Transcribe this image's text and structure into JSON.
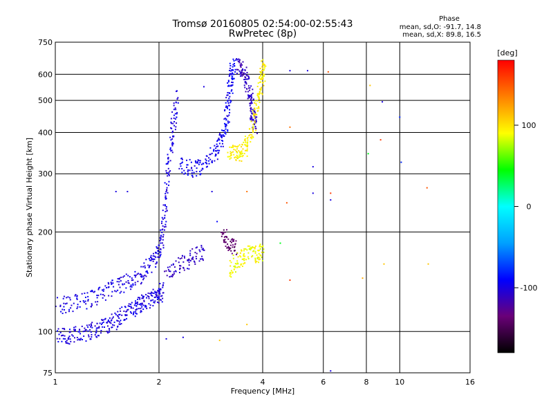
{
  "chart_data": {
    "type": "scatter",
    "title": "Tromsø 20160805 02:54:00-02:55:43",
    "subtitle": "RwPretec (8p)",
    "xlabel": "Frequency [MHz]",
    "ylabel": "Stationary phase Virtual Height [km]",
    "x_scale": "log",
    "y_scale": "log",
    "xlim": [
      1,
      16
    ],
    "ylim": [
      75,
      750
    ],
    "x_ticks": [
      1,
      2,
      4,
      6,
      8,
      10,
      16
    ],
    "y_ticks": [
      75,
      100,
      200,
      300,
      400,
      500,
      600,
      750
    ],
    "grid": true,
    "phase_info": {
      "heading": "Phase",
      "line_o": "mean, sd,O: -91.7, 14.8",
      "line_x": "mean, sd,X:  89.8, 16.5"
    },
    "colorbar": {
      "label": "[deg]",
      "range": [
        -180,
        180
      ],
      "ticks": [
        100,
        0,
        -100
      ],
      "colors": [
        "#000000",
        "#6a0078",
        "#0000ff",
        "#00a0ff",
        "#00ffff",
        "#00ff00",
        "#ffff00",
        "#ff8000",
        "#ff0000"
      ]
    },
    "traces": [
      {
        "points": [
          [
            1.01,
            97
          ],
          [
            1.1,
            97
          ],
          [
            1.2,
            99
          ],
          [
            1.3,
            101
          ],
          [
            1.4,
            104
          ],
          [
            1.5,
            108
          ],
          [
            1.6,
            114
          ],
          [
            1.7,
            119
          ],
          [
            1.8,
            122
          ],
          [
            1.9,
            126
          ],
          [
            2.0,
            130
          ],
          [
            2.05,
            133
          ]
        ],
        "phase": -100
      },
      {
        "points": [
          [
            1.02,
            120
          ],
          [
            1.15,
            122
          ],
          [
            1.3,
            127
          ],
          [
            1.45,
            134
          ],
          [
            1.6,
            140
          ],
          [
            1.75,
            148
          ],
          [
            1.9,
            160
          ],
          [
            2.0,
            172
          ],
          [
            2.05,
            200
          ],
          [
            2.1,
            260
          ],
          [
            2.15,
            330
          ],
          [
            2.2,
            420
          ],
          [
            2.25,
            520
          ]
        ],
        "phase": -100
      },
      {
        "points": [
          [
            2.1,
            150
          ],
          [
            2.3,
            160
          ],
          [
            2.5,
            168
          ],
          [
            2.7,
            175
          ]
        ],
        "phase": -110
      },
      {
        "points": [
          [
            2.3,
            320
          ],
          [
            2.5,
            310
          ],
          [
            2.7,
            318
          ],
          [
            2.9,
            350
          ],
          [
            3.05,
            380
          ],
          [
            3.15,
            440
          ],
          [
            3.2,
            520
          ],
          [
            3.25,
            600
          ],
          [
            3.3,
            640
          ]
        ],
        "phase": -95
      },
      {
        "points": [
          [
            3.4,
            640
          ],
          [
            3.5,
            620
          ],
          [
            3.6,
            560
          ],
          [
            3.7,
            500
          ],
          [
            3.75,
            450
          ],
          [
            3.8,
            420
          ]
        ],
        "phase": -110
      },
      {
        "points": [
          [
            3.2,
            350
          ],
          [
            3.35,
            345
          ],
          [
            3.5,
            350
          ],
          [
            3.65,
            380
          ],
          [
            3.8,
            450
          ],
          [
            3.9,
            520
          ],
          [
            4.0,
            600
          ],
          [
            4.02,
            650
          ]
        ],
        "phase": 95
      },
      {
        "points": [
          [
            3.05,
            196
          ],
          [
            3.2,
            186
          ],
          [
            3.35,
            180
          ]
        ],
        "phase": -140
      },
      {
        "points": [
          [
            3.2,
            155
          ],
          [
            3.4,
            165
          ],
          [
            3.6,
            172
          ],
          [
            3.85,
            172
          ],
          [
            4.0,
            174
          ]
        ],
        "phase": 90
      }
    ],
    "scatter": [
      {
        "x": 1.5,
        "y": 265,
        "phase": -100
      },
      {
        "x": 1.62,
        "y": 265,
        "phase": -100
      },
      {
        "x": 2.7,
        "y": 550,
        "phase": -100
      },
      {
        "x": 2.85,
        "y": 265,
        "phase": -100
      },
      {
        "x": 2.95,
        "y": 215,
        "phase": -90
      },
      {
        "x": 3.6,
        "y": 265,
        "phase": 140
      },
      {
        "x": 4.7,
        "y": 245,
        "phase": 150
      },
      {
        "x": 4.8,
        "y": 415,
        "phase": 140
      },
      {
        "x": 4.8,
        "y": 615,
        "phase": -100
      },
      {
        "x": 5.4,
        "y": 615,
        "phase": -100
      },
      {
        "x": 5.6,
        "y": 315,
        "phase": -100
      },
      {
        "x": 5.6,
        "y": 262,
        "phase": -100
      },
      {
        "x": 6.2,
        "y": 610,
        "phase": 150
      },
      {
        "x": 6.3,
        "y": 262,
        "phase": 160
      },
      {
        "x": 6.3,
        "y": 250,
        "phase": -100
      },
      {
        "x": 7.8,
        "y": 145,
        "phase": 120
      },
      {
        "x": 8.1,
        "y": 345,
        "phase": 40
      },
      {
        "x": 8.2,
        "y": 555,
        "phase": 110
      },
      {
        "x": 8.8,
        "y": 380,
        "phase": 160
      },
      {
        "x": 8.9,
        "y": 495,
        "phase": -100
      },
      {
        "x": 9.0,
        "y": 160,
        "phase": 110
      },
      {
        "x": 10.0,
        "y": 445,
        "phase": -80
      },
      {
        "x": 10.1,
        "y": 325,
        "phase": -80
      },
      {
        "x": 12.0,
        "y": 272,
        "phase": 150
      },
      {
        "x": 12.1,
        "y": 160,
        "phase": 110
      },
      {
        "x": 4.5,
        "y": 185,
        "phase": 40
      },
      {
        "x": 4.8,
        "y": 143,
        "phase": 160
      },
      {
        "x": 3.0,
        "y": 94,
        "phase": 110
      },
      {
        "x": 3.6,
        "y": 105,
        "phase": 110
      },
      {
        "x": 6.3,
        "y": 76,
        "phase": -100
      },
      {
        "x": 2.35,
        "y": 96,
        "phase": -100
      },
      {
        "x": 2.1,
        "y": 95,
        "phase": -100
      }
    ]
  }
}
